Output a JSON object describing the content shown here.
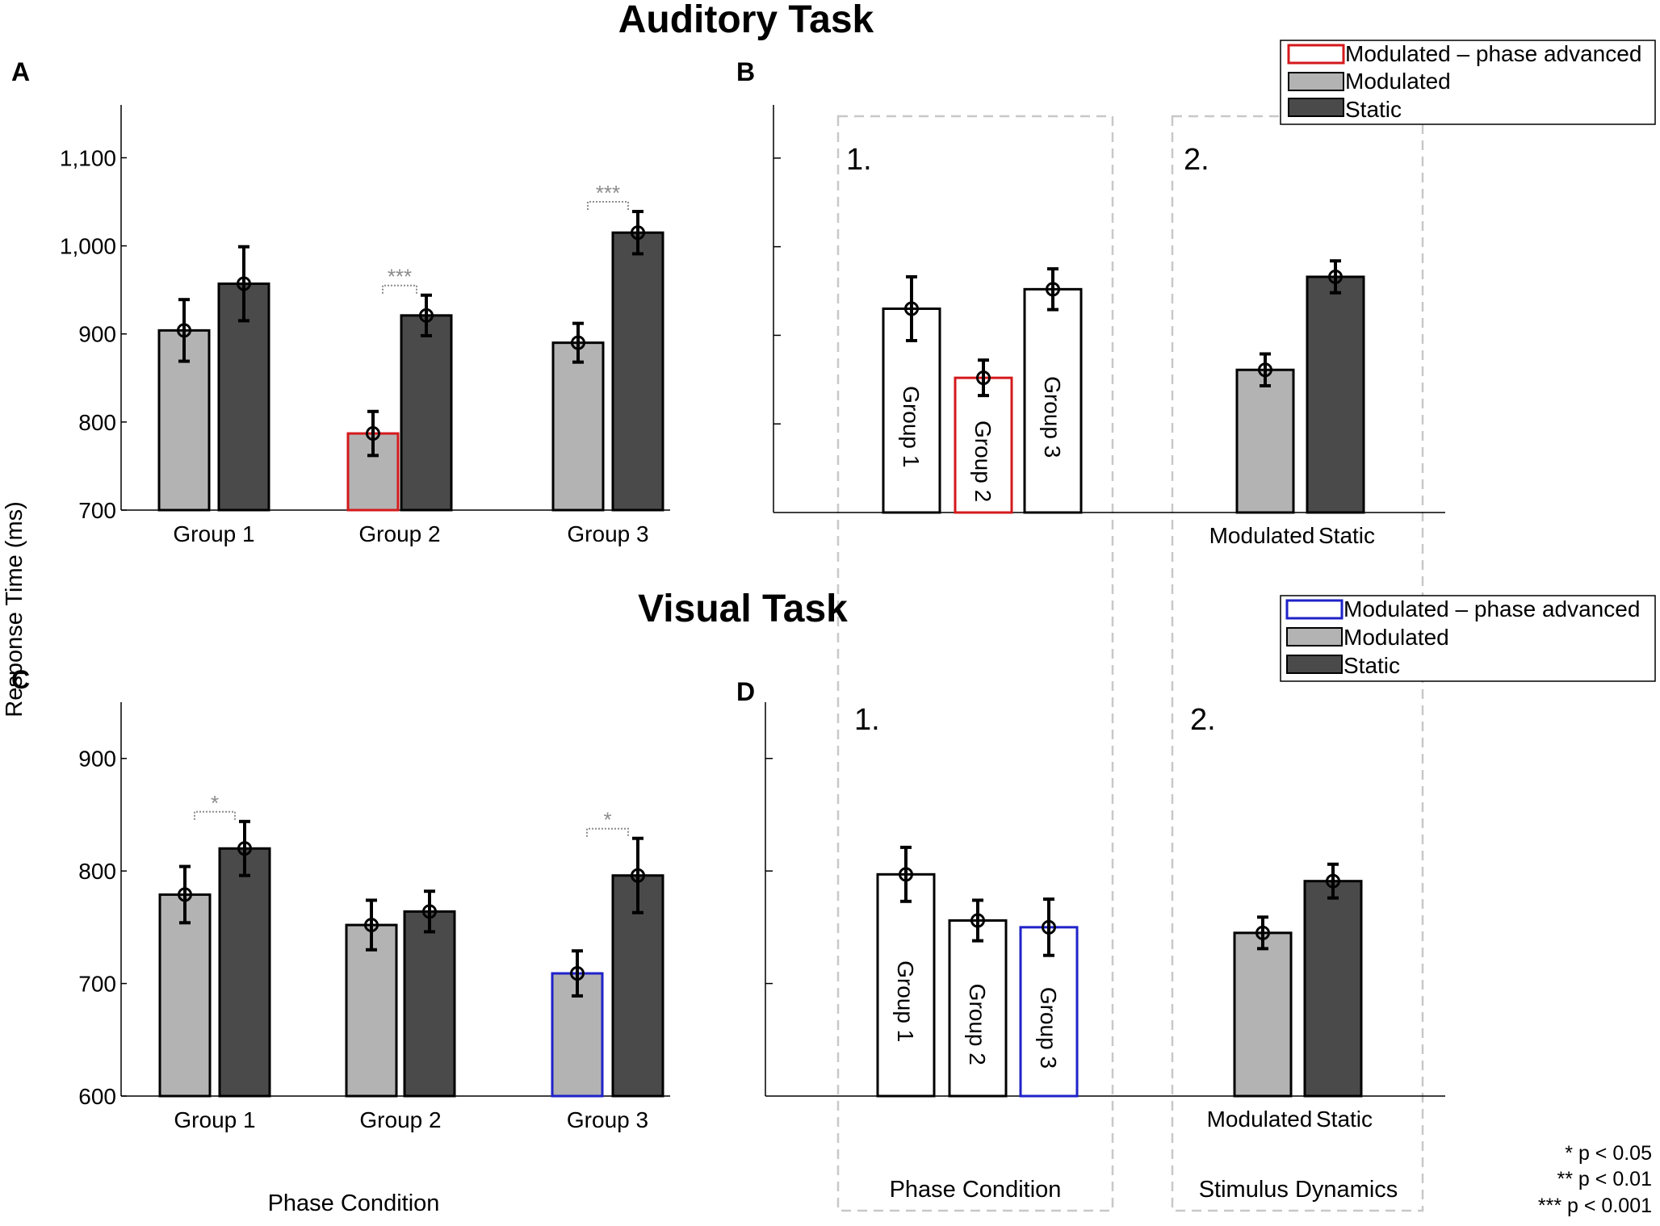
{
  "colors": {
    "modulated": "#b3b3b3",
    "static": "#4a4a4a",
    "phase_advanced_auditory": "#d4191c",
    "phase_advanced_visual": "#1f22c9",
    "group_bar_fill": "#ffffff",
    "dashed_box": "#c8c8c8",
    "significance": "#8c8c8c"
  },
  "titles": {
    "auditory": "Auditory Task",
    "visual": "Visual Task"
  },
  "panel_letters": {
    "A": "A",
    "B": "B",
    "C": "C",
    "D": "D"
  },
  "shared_ylabel": "Response Time (ms)",
  "xlabel_left": "Phase Condition",
  "box_numbers": {
    "one_top": "1.",
    "two_top": "2.",
    "one_bottom": "1.",
    "two_bottom": "2."
  },
  "box_labels": {
    "phase": "Phase Condition",
    "dynamics": "Stimulus Dynamics"
  },
  "legend_auditory": {
    "phase_advanced": "Modulated – phase advanced",
    "modulated": "Modulated",
    "static": "Static"
  },
  "legend_visual": {
    "phase_advanced": "Modulated – phase advanced",
    "modulated": "Modulated",
    "static": "Static"
  },
  "significance_key": {
    "one_star": "* p < 0.05",
    "two_star": "** p < 0.01",
    "three_star": "*** p < 0.001"
  },
  "chart_data": [
    {
      "panel": "A",
      "type": "bar",
      "title": "Auditory Task",
      "ylabel": "Response Time (ms)",
      "xlabel": "",
      "ylim": [
        700,
        1160
      ],
      "yticks": [
        700,
        800,
        900,
        1000,
        1100
      ],
      "ytick_labels": [
        "700",
        "800",
        "900",
        "1,000",
        "1,100"
      ],
      "categories": [
        "Group 1",
        "Group 2",
        "Group 3"
      ],
      "series": [
        {
          "name": "Modulated",
          "values": [
            904,
            787,
            890
          ],
          "errors": [
            35,
            25,
            22
          ]
        },
        {
          "name": "Static",
          "values": [
            957,
            921,
            1015
          ],
          "errors": [
            42,
            23,
            24
          ]
        }
      ],
      "phase_advanced": {
        "series": "Modulated",
        "category": "Group 2"
      },
      "significance": [
        {
          "category": "Group 2",
          "label": "***"
        },
        {
          "category": "Group 3",
          "label": "***"
        }
      ]
    },
    {
      "panel": "B",
      "type": "bar",
      "ylim": [
        700,
        1160
      ],
      "yticks": [
        800,
        900,
        1000,
        1100
      ],
      "groups": [
        {
          "label": "Phase Condition",
          "categories": [
            "Group 1",
            "Group 2",
            "Group 3"
          ],
          "values": [
            930,
            852,
            952
          ],
          "errors": [
            36,
            20,
            23
          ],
          "fills": [
            "white",
            "white",
            "white"
          ],
          "phase_advanced": "Group 2"
        },
        {
          "label": "Stimulus Dynamics",
          "categories": [
            "Modulated",
            "Static"
          ],
          "values": [
            861,
            966
          ],
          "errors": [
            18,
            18
          ]
        }
      ]
    },
    {
      "panel": "C",
      "type": "bar",
      "title": "Visual Task",
      "ylabel": "Response Time (ms)",
      "xlabel": "Phase Condition",
      "ylim": [
        600,
        950
      ],
      "yticks": [
        600,
        700,
        800,
        900
      ],
      "ytick_labels": [
        "600",
        "700",
        "800",
        "900"
      ],
      "categories": [
        "Group 1",
        "Group 2",
        "Group 3"
      ],
      "series": [
        {
          "name": "Modulated",
          "values": [
            779,
            752,
            709
          ],
          "errors": [
            25,
            22,
            20
          ]
        },
        {
          "name": "Static",
          "values": [
            820,
            764,
            796
          ],
          "errors": [
            24,
            18,
            33
          ]
        }
      ],
      "phase_advanced": {
        "series": "Modulated",
        "category": "Group 3"
      },
      "significance": [
        {
          "category": "Group 1",
          "label": "*"
        },
        {
          "category": "Group 3",
          "label": "*"
        }
      ]
    },
    {
      "panel": "D",
      "type": "bar",
      "ylim": [
        600,
        950
      ],
      "yticks": [
        700,
        800,
        900
      ],
      "groups": [
        {
          "label": "Phase Condition",
          "categories": [
            "Group 1",
            "Group 2",
            "Group 3"
          ],
          "values": [
            797,
            756,
            750
          ],
          "errors": [
            24,
            18,
            25
          ],
          "phase_advanced": "Group 3"
        },
        {
          "label": "Stimulus Dynamics",
          "categories": [
            "Modulated",
            "Static"
          ],
          "values": [
            745,
            791
          ],
          "errors": [
            14,
            15
          ]
        }
      ]
    }
  ]
}
